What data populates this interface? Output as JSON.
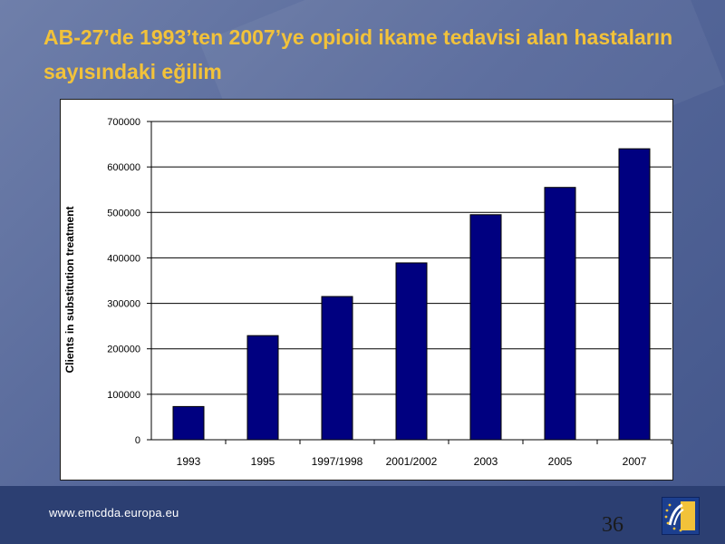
{
  "slide": {
    "title": "AB-27’de 1993’ten 2007’ye opioid ikame tedavisi alan hastaların sayısındaki eğilim",
    "footer_url": "www.emcdda.europa.eu",
    "page_number": "36"
  },
  "colors": {
    "title": "#f2c23a",
    "bar": "#000080",
    "footer": "#2c3f72"
  },
  "chart_data": {
    "type": "bar",
    "title": "",
    "xlabel": "",
    "ylabel": "Clients in substitution treatment",
    "categories": [
      "1993",
      "1995",
      "1997/1998",
      "2001/2002",
      "2003",
      "2005",
      "2007"
    ],
    "values": [
      73000,
      229000,
      315000,
      389000,
      495000,
      555000,
      640000
    ],
    "ylim": [
      0,
      700000
    ],
    "yticks": [
      "0",
      "100000",
      "200000",
      "300000",
      "400000",
      "500000",
      "600000",
      "700000"
    ],
    "grid": true,
    "legend": "none"
  }
}
